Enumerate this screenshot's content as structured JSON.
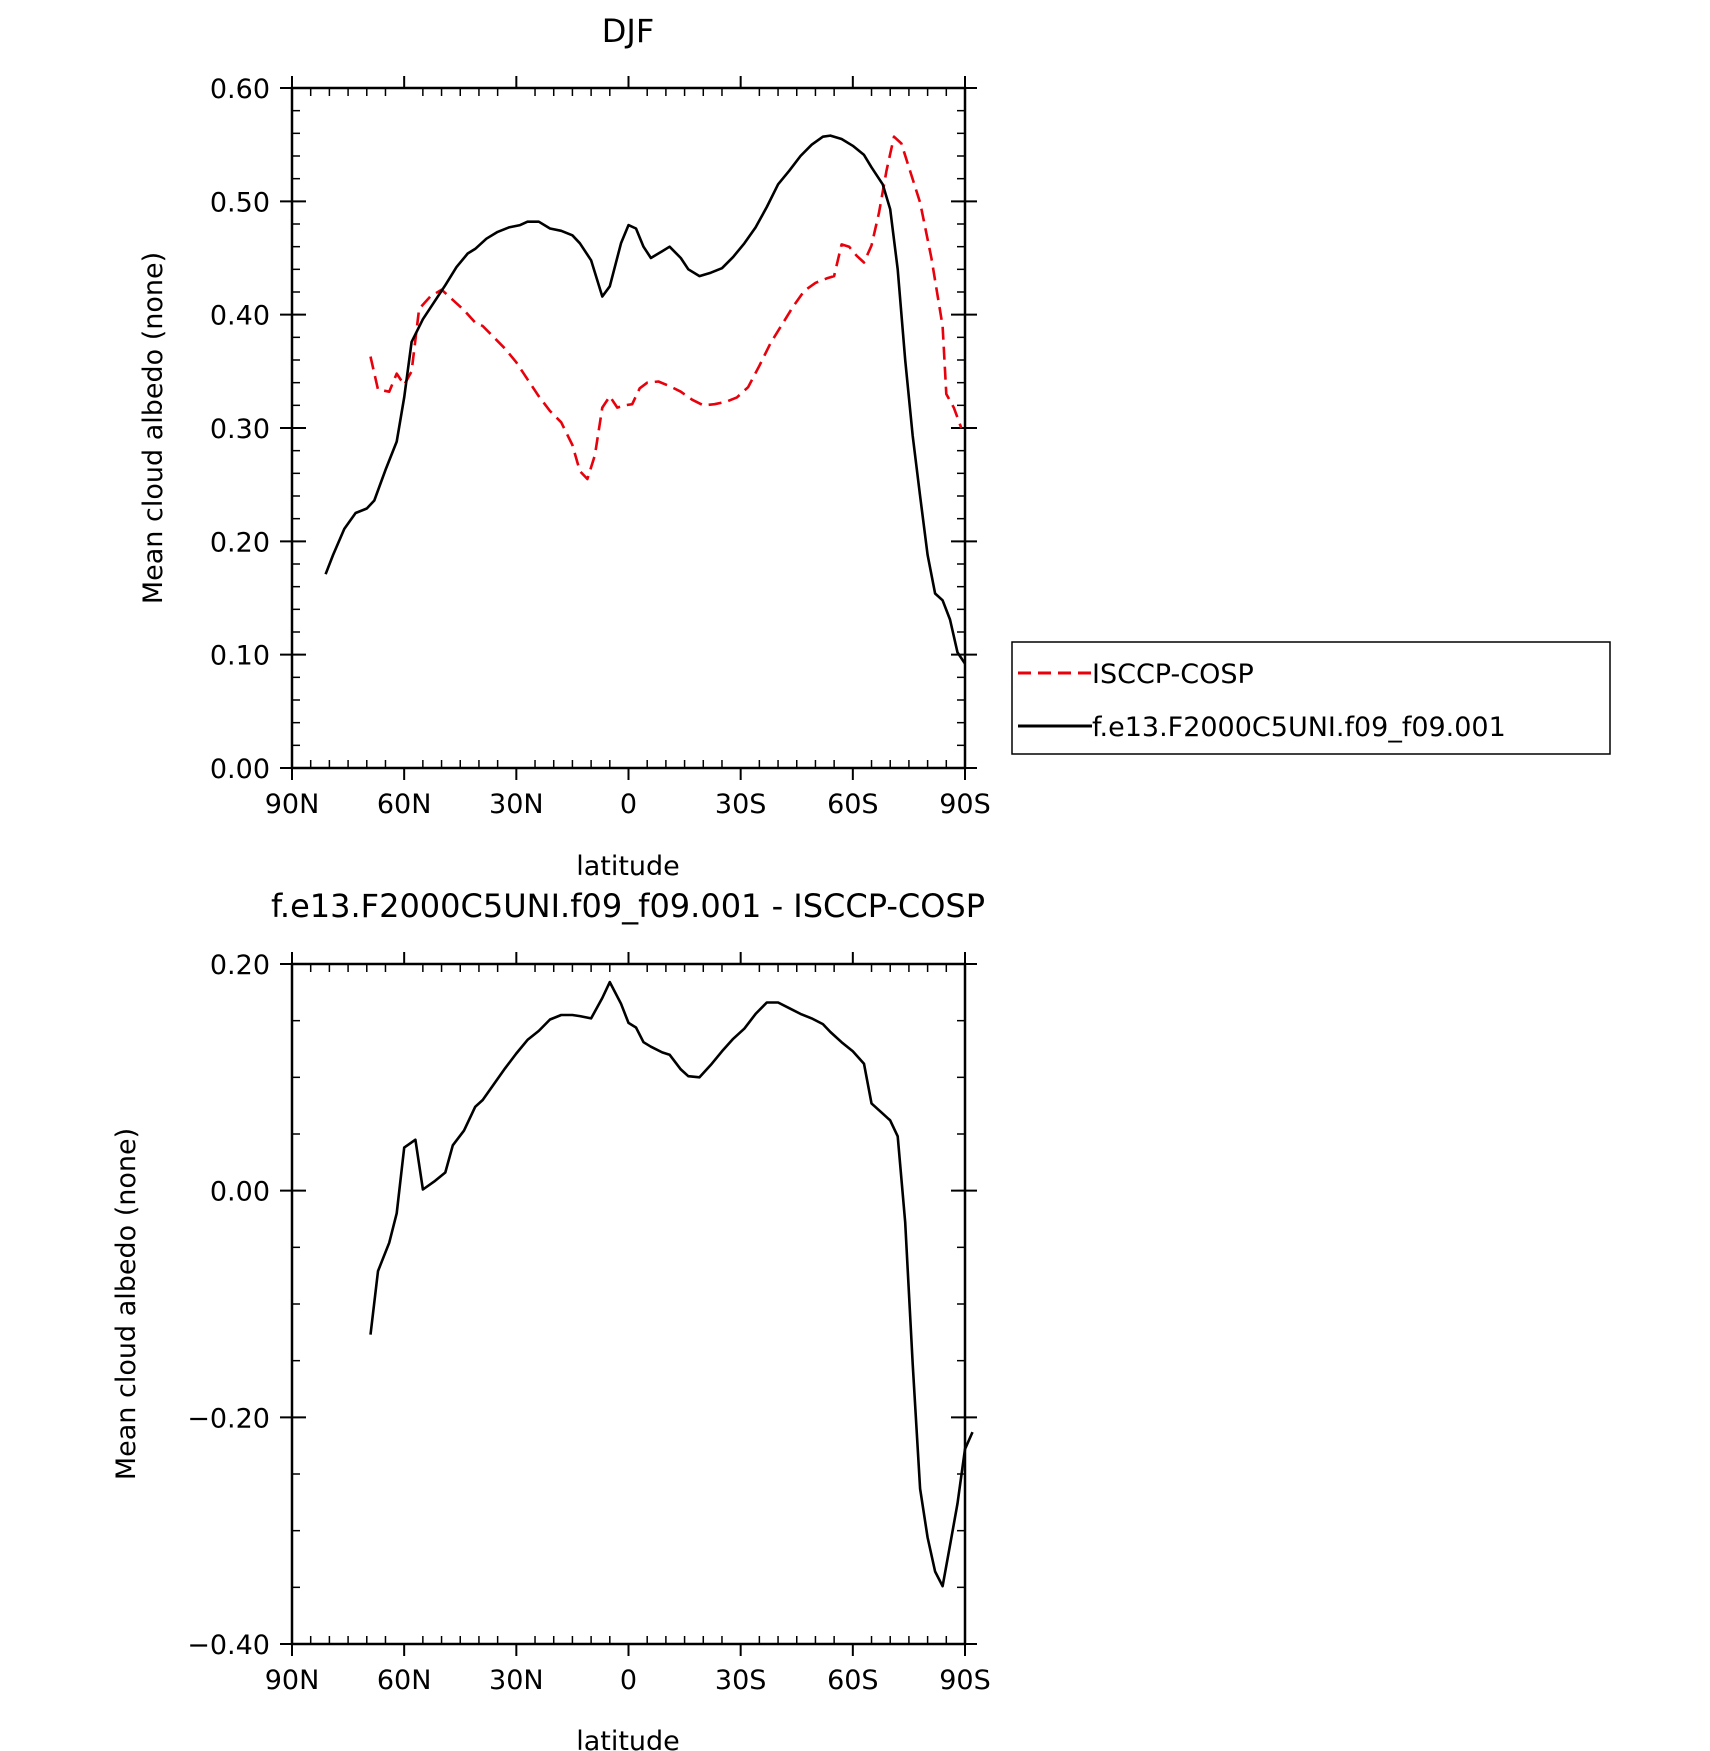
{
  "chart_data": [
    {
      "type": "line",
      "title": "DJF",
      "xlabel": "latitude",
      "ylabel": "Mean cloud albedo (none)",
      "xlim": [
        90,
        -90
      ],
      "ylim": [
        0.0,
        0.6
      ],
      "x_ticks": [
        {
          "value": 90,
          "label": "90N"
        },
        {
          "value": 60,
          "label": "60N"
        },
        {
          "value": 30,
          "label": "30N"
        },
        {
          "value": 0,
          "label": "0"
        },
        {
          "value": -30,
          "label": "30S"
        },
        {
          "value": -60,
          "label": "60S"
        },
        {
          "value": -90,
          "label": "90S"
        }
      ],
      "y_ticks": [
        {
          "value": 0.0,
          "label": "0.00"
        },
        {
          "value": 0.1,
          "label": "0.10"
        },
        {
          "value": 0.2,
          "label": "0.20"
        },
        {
          "value": 0.3,
          "label": "0.30"
        },
        {
          "value": 0.4,
          "label": "0.40"
        },
        {
          "value": 0.5,
          "label": "0.50"
        },
        {
          "value": 0.6,
          "label": "0.60"
        }
      ],
      "legend_position": "right",
      "series": [
        {
          "name": "ISCCP-COSP",
          "color": "#e8000b",
          "dash": true,
          "points": [
            [
              69,
              0.363
            ],
            [
              67,
              0.334
            ],
            [
              64,
              0.332
            ],
            [
              62,
              0.348
            ],
            [
              60,
              0.338
            ],
            [
              58,
              0.35
            ],
            [
              56,
              0.405
            ],
            [
              53,
              0.416
            ],
            [
              50,
              0.422
            ],
            [
              47,
              0.413
            ],
            [
              44,
              0.404
            ],
            [
              41,
              0.393
            ],
            [
              39,
              0.39
            ],
            [
              36,
              0.38
            ],
            [
              33,
              0.37
            ],
            [
              30,
              0.358
            ],
            [
              27,
              0.343
            ],
            [
              24,
              0.328
            ],
            [
              21,
              0.315
            ],
            [
              18,
              0.305
            ],
            [
              15,
              0.285
            ],
            [
              13,
              0.262
            ],
            [
              11,
              0.255
            ],
            [
              9,
              0.276
            ],
            [
              7,
              0.318
            ],
            [
              5,
              0.328
            ],
            [
              3,
              0.318
            ],
            [
              1,
              0.32
            ],
            [
              -1,
              0.321
            ],
            [
              -3,
              0.335
            ],
            [
              -5,
              0.34
            ],
            [
              -8,
              0.341
            ],
            [
              -11,
              0.337
            ],
            [
              -14,
              0.332
            ],
            [
              -17,
              0.325
            ],
            [
              -20,
              0.32
            ],
            [
              -23,
              0.321
            ],
            [
              -26,
              0.323
            ],
            [
              -29,
              0.327
            ],
            [
              -32,
              0.336
            ],
            [
              -35,
              0.355
            ],
            [
              -38,
              0.375
            ],
            [
              -41,
              0.391
            ],
            [
              -44,
              0.407
            ],
            [
              -47,
              0.421
            ],
            [
              -50,
              0.428
            ],
            [
              -53,
              0.432
            ],
            [
              -55,
              0.434
            ],
            [
              -57,
              0.462
            ],
            [
              -59,
              0.46
            ],
            [
              -61,
              0.452
            ],
            [
              -63,
              0.446
            ],
            [
              -65,
              0.461
            ],
            [
              -67,
              0.49
            ],
            [
              -69,
              0.527
            ],
            [
              -71,
              0.557
            ],
            [
              -73,
              0.551
            ],
            [
              -75,
              0.53
            ],
            [
              -78,
              0.499
            ],
            [
              -81,
              0.45
            ],
            [
              -84,
              0.39
            ],
            [
              -85,
              0.33
            ],
            [
              -87,
              0.318
            ],
            [
              -89,
              0.3
            ]
          ]
        },
        {
          "name": "f.e13.F2000C5UNI.f09_f09.001",
          "color": "#000000",
          "dash": false,
          "points": [
            [
              81,
              0.171
            ],
            [
              79,
              0.188
            ],
            [
              76,
              0.211
            ],
            [
              73,
              0.225
            ],
            [
              70,
              0.229
            ],
            [
              68,
              0.236
            ],
            [
              65,
              0.263
            ],
            [
              62,
              0.288
            ],
            [
              60,
              0.327
            ],
            [
              58,
              0.376
            ],
            [
              55,
              0.396
            ],
            [
              52,
              0.411
            ],
            [
              49,
              0.426
            ],
            [
              46,
              0.442
            ],
            [
              43,
              0.454
            ],
            [
              41,
              0.458
            ],
            [
              38,
              0.467
            ],
            [
              35,
              0.473
            ],
            [
              32,
              0.477
            ],
            [
              29,
              0.479
            ],
            [
              27,
              0.482
            ],
            [
              24,
              0.482
            ],
            [
              21,
              0.476
            ],
            [
              18,
              0.474
            ],
            [
              15,
              0.47
            ],
            [
              13,
              0.463
            ],
            [
              10,
              0.448
            ],
            [
              7,
              0.416
            ],
            [
              5,
              0.425
            ],
            [
              2,
              0.463
            ],
            [
              0,
              0.479
            ],
            [
              -2,
              0.476
            ],
            [
              -4,
              0.46
            ],
            [
              -6,
              0.45
            ],
            [
              -9,
              0.456
            ],
            [
              -11,
              0.46
            ],
            [
              -14,
              0.45
            ],
            [
              -16,
              0.44
            ],
            [
              -19,
              0.434
            ],
            [
              -22,
              0.437
            ],
            [
              -25,
              0.441
            ],
            [
              -28,
              0.451
            ],
            [
              -31,
              0.463
            ],
            [
              -34,
              0.477
            ],
            [
              -37,
              0.495
            ],
            [
              -40,
              0.515
            ],
            [
              -43,
              0.527
            ],
            [
              -46,
              0.54
            ],
            [
              -49,
              0.55
            ],
            [
              -52,
              0.557
            ],
            [
              -54,
              0.558
            ],
            [
              -57,
              0.555
            ],
            [
              -60,
              0.549
            ],
            [
              -63,
              0.541
            ],
            [
              -65,
              0.53
            ],
            [
              -68,
              0.515
            ],
            [
              -70,
              0.493
            ],
            [
              -72,
              0.44
            ],
            [
              -74,
              0.36
            ],
            [
              -76,
              0.293
            ],
            [
              -78,
              0.24
            ],
            [
              -80,
              0.188
            ],
            [
              -82,
              0.154
            ],
            [
              -84,
              0.148
            ],
            [
              -86,
              0.131
            ],
            [
              -88,
              0.102
            ],
            [
              -90,
              0.092
            ]
          ]
        }
      ]
    },
    {
      "type": "line",
      "title": "f.e13.F2000C5UNI.f09_f09.001 - ISCCP-COSP",
      "xlabel": "latitude",
      "ylabel": "Mean cloud albedo (none)",
      "xlim": [
        90,
        -90
      ],
      "ylim": [
        -0.4,
        0.2
      ],
      "x_ticks": [
        {
          "value": 90,
          "label": "90N"
        },
        {
          "value": 60,
          "label": "60N"
        },
        {
          "value": 30,
          "label": "30N"
        },
        {
          "value": 0,
          "label": "0"
        },
        {
          "value": -30,
          "label": "30S"
        },
        {
          "value": -60,
          "label": "60S"
        },
        {
          "value": -90,
          "label": "90S"
        }
      ],
      "y_ticks": [
        {
          "value": -0.4,
          "label": "−0.40"
        },
        {
          "value": -0.2,
          "label": "−0.20"
        },
        {
          "value": 0.0,
          "label": "0.00"
        },
        {
          "value": 0.2,
          "label": "0.20"
        }
      ],
      "series": [
        {
          "color": "#000000",
          "dash": false,
          "points": [
            [
              69,
              -0.127
            ],
            [
              67,
              -0.071
            ],
            [
              64,
              -0.046
            ],
            [
              62,
              -0.02
            ],
            [
              60,
              0.038
            ],
            [
              57,
              0.045
            ],
            [
              55,
              0.001
            ],
            [
              52,
              0.008
            ],
            [
              49,
              0.016
            ],
            [
              47,
              0.04
            ],
            [
              44,
              0.053
            ],
            [
              41,
              0.074
            ],
            [
              39,
              0.08
            ],
            [
              36,
              0.094
            ],
            [
              33,
              0.108
            ],
            [
              30,
              0.121
            ],
            [
              27,
              0.133
            ],
            [
              24,
              0.141
            ],
            [
              21,
              0.151
            ],
            [
              18,
              0.155
            ],
            [
              15,
              0.155
            ],
            [
              13,
              0.154
            ],
            [
              10,
              0.152
            ],
            [
              7,
              0.17
            ],
            [
              5,
              0.184
            ],
            [
              2,
              0.165
            ],
            [
              0,
              0.148
            ],
            [
              -2,
              0.144
            ],
            [
              -4,
              0.131
            ],
            [
              -6,
              0.127
            ],
            [
              -9,
              0.122
            ],
            [
              -11,
              0.12
            ],
            [
              -14,
              0.107
            ],
            [
              -16,
              0.101
            ],
            [
              -19,
              0.1
            ],
            [
              -22,
              0.111
            ],
            [
              -25,
              0.123
            ],
            [
              -28,
              0.134
            ],
            [
              -31,
              0.143
            ],
            [
              -34,
              0.156
            ],
            [
              -37,
              0.166
            ],
            [
              -40,
              0.166
            ],
            [
              -43,
              0.161
            ],
            [
              -46,
              0.156
            ],
            [
              -49,
              0.152
            ],
            [
              -52,
              0.147
            ],
            [
              -54,
              0.14
            ],
            [
              -57,
              0.131
            ],
            [
              -60,
              0.123
            ],
            [
              -63,
              0.112
            ],
            [
              -65,
              0.077
            ],
            [
              -68,
              0.068
            ],
            [
              -70,
              0.062
            ],
            [
              -72,
              0.048
            ],
            [
              -74,
              -0.028
            ],
            [
              -76,
              -0.153
            ],
            [
              -78,
              -0.263
            ],
            [
              -80,
              -0.306
            ],
            [
              -82,
              -0.336
            ],
            [
              -84,
              -0.349
            ],
            [
              -86,
              -0.313
            ],
            [
              -88,
              -0.276
            ],
            [
              -90,
              -0.228
            ],
            [
              -92,
              -0.213
            ]
          ]
        }
      ]
    }
  ]
}
